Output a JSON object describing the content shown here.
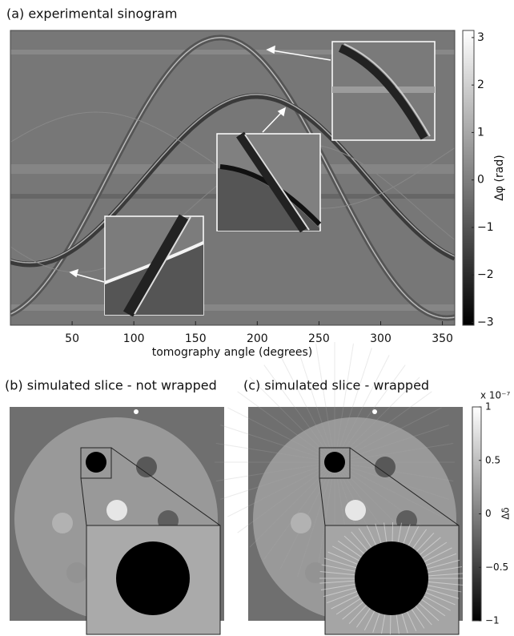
{
  "sinogram": {
    "title": "(a) experimental sinogram",
    "xlabel": "tomography angle (degrees)",
    "xlim": [
      0,
      360
    ],
    "xticks": [
      50,
      100,
      150,
      200,
      250,
      300,
      350
    ],
    "colorbar": {
      "label": "Δφ (rad)",
      "lim": [
        -3.06,
        3.15
      ],
      "ticks": [
        {
          "value": -3,
          "label": "−3"
        },
        {
          "value": -2,
          "label": "−2"
        },
        {
          "value": -1,
          "label": "−1"
        },
        0,
        1,
        2,
        3
      ]
    }
  },
  "slices": {
    "titles": [
      "(b) simulated slice - not wrapped",
      "(c) simulated slice - wrapped"
    ],
    "colorbar": {
      "label": "Δδ",
      "multiplier": "x 10⁻⁷",
      "lim": [
        -1,
        1
      ],
      "ticks": [
        {
          "value": -1,
          "label": "−1"
        },
        {
          "value": -0.5,
          "label": "−0.5"
        },
        0,
        0.5,
        1
      ]
    }
  }
}
